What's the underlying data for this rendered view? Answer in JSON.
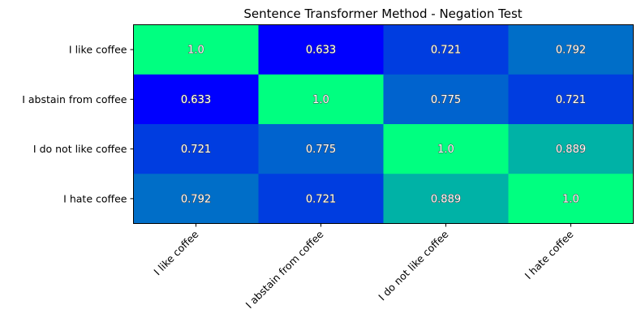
{
  "chart_data": {
    "type": "heatmap",
    "title": "Sentence Transformer Method - Negation Test",
    "xlabel": "",
    "ylabel": "",
    "x_categories": [
      "I like coffee",
      "I abstain from coffee",
      "I do not like coffee",
      "I hate coffee"
    ],
    "y_categories": [
      "I like coffee",
      "I abstain from coffee",
      "I do not like coffee",
      "I hate coffee"
    ],
    "values": [
      [
        1.0,
        0.633,
        0.721,
        0.792
      ],
      [
        0.633,
        1.0,
        0.775,
        0.721
      ],
      [
        0.721,
        0.775,
        1.0,
        0.889
      ],
      [
        0.792,
        0.721,
        0.889,
        1.0
      ]
    ],
    "value_labels": [
      [
        "1.0",
        "0.633",
        "0.721",
        "0.792"
      ],
      [
        "0.633",
        "1.0",
        "0.775",
        "0.721"
      ],
      [
        "0.721",
        "0.775",
        "1.0",
        "0.889"
      ],
      [
        "0.792",
        "0.721",
        "0.889",
        "1.0"
      ]
    ],
    "colormap": "winter",
    "color_min": "#0000ff",
    "color_max": "#00ff80",
    "grid": false
  }
}
